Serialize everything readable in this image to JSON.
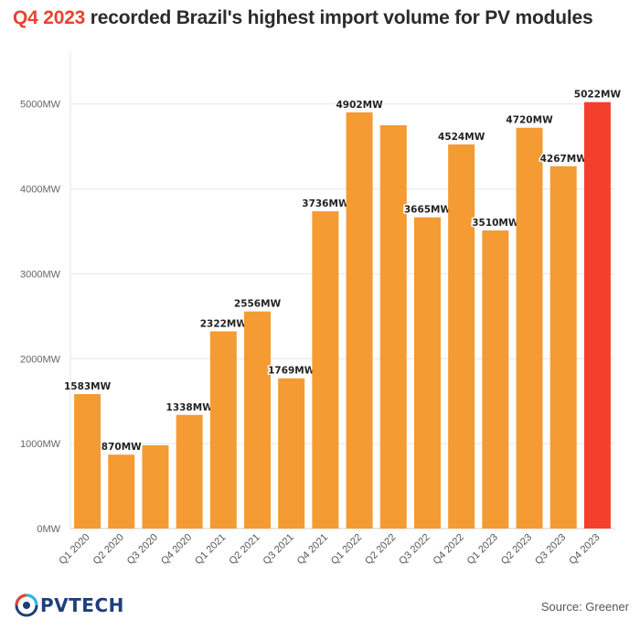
{
  "title": {
    "highlight": "Q4 2023",
    "rest": " recorded Brazil's highest import volume for PV modules"
  },
  "chart_data": {
    "type": "bar",
    "categories": [
      "Q1 2020",
      "Q2 2020",
      "Q3 2020",
      "Q4 2020",
      "Q1 2021",
      "Q2 2021",
      "Q3 2021",
      "Q4 2021",
      "Q1 2022",
      "Q2 2022",
      "Q3 2022",
      "Q4 2022",
      "Q1 2023",
      "Q2 2023",
      "Q3 2023",
      "Q4 2023"
    ],
    "values": [
      1583,
      870,
      980,
      1338,
      2322,
      2556,
      1769,
      3736,
      4902,
      4750,
      3665,
      4524,
      3510,
      4720,
      4267,
      5022
    ],
    "labels": [
      "1583MW",
      "870MW",
      "",
      "1338MW",
      "2322MW",
      "2556MW",
      "1769MW",
      "3736MW",
      "4902MW",
      "",
      "3665MW",
      "4524MW",
      "3510MW",
      "4720MW",
      "4267MW",
      "5022MW"
    ],
    "highlight_index": 15,
    "ylim": [
      0,
      5600
    ],
    "yticks": [
      0,
      1000,
      2000,
      3000,
      4000,
      5000
    ],
    "ytick_labels": [
      "0MW",
      "1000MW",
      "2000MW",
      "3000MW",
      "4000MW",
      "5000MW"
    ],
    "bar_color": "#f49b33",
    "highlight_color": "#f2402d",
    "xlabel": "",
    "ylabel": ""
  },
  "footer": {
    "logo_text": "PVTECH",
    "source": "Source: Greener"
  }
}
